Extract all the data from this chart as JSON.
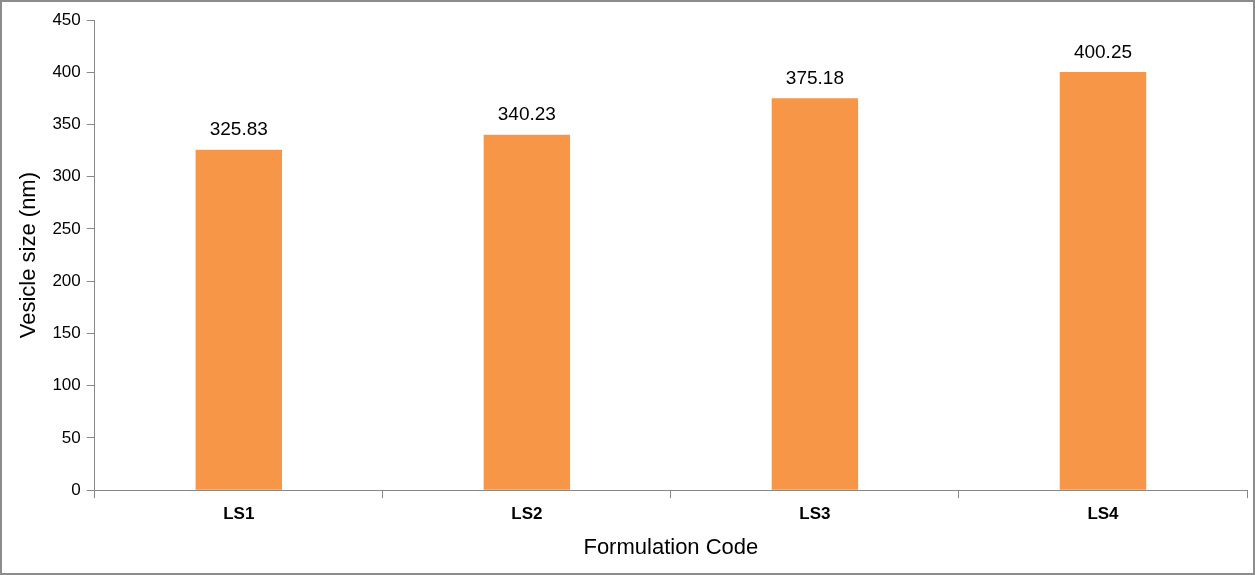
{
  "chart_data": {
    "type": "bar",
    "xlabel": "Formulation Code",
    "ylabel": "Vesicle size (nm)",
    "categories": [
      "LS1",
      "LS2",
      "LS3",
      "LS4"
    ],
    "values": [
      325.83,
      340.23,
      375.18,
      400.25
    ],
    "color": "#f79646",
    "ylim": [
      0,
      450
    ],
    "yticks": [
      0,
      50,
      100,
      150,
      200,
      250,
      300,
      350,
      400,
      450
    ],
    "grid": false,
    "legend": false,
    "data_labels": true
  }
}
